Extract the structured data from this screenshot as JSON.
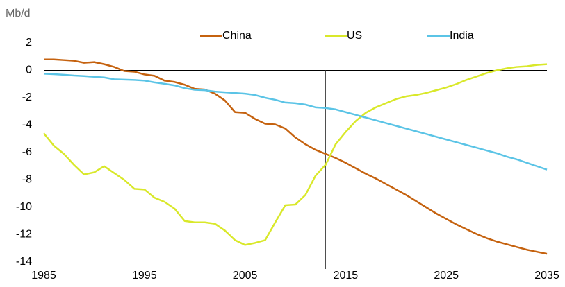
{
  "chart_data": {
    "type": "line",
    "y_label": "Mb/d",
    "x": [
      1985,
      1986,
      1987,
      1988,
      1989,
      1990,
      1991,
      1992,
      1993,
      1994,
      1995,
      1996,
      1997,
      1998,
      1999,
      2000,
      2001,
      2002,
      2003,
      2004,
      2005,
      2006,
      2007,
      2008,
      2009,
      2010,
      2011,
      2012,
      2013,
      2014,
      2015,
      2016,
      2017,
      2018,
      2019,
      2020,
      2021,
      2022,
      2023,
      2024,
      2025,
      2026,
      2027,
      2028,
      2029,
      2030,
      2031,
      2032,
      2033,
      2034,
      2035
    ],
    "series": [
      {
        "name": "China",
        "color": "#c5620f",
        "values": [
          0.8,
          0.8,
          0.75,
          0.7,
          0.55,
          0.6,
          0.45,
          0.25,
          -0.05,
          -0.1,
          -0.3,
          -0.4,
          -0.75,
          -0.85,
          -1.05,
          -1.35,
          -1.4,
          -1.7,
          -2.2,
          -3.05,
          -3.1,
          -3.55,
          -3.9,
          -3.95,
          -4.25,
          -4.9,
          -5.4,
          -5.8,
          -6.1,
          -6.4,
          -6.75,
          -7.15,
          -7.55,
          -7.9,
          -8.3,
          -8.7,
          -9.1,
          -9.55,
          -10.0,
          -10.45,
          -10.85,
          -11.25,
          -11.6,
          -11.95,
          -12.25,
          -12.5,
          -12.7,
          -12.9,
          -13.1,
          -13.25,
          -13.4
        ]
      },
      {
        "name": "US",
        "color": "#d9e82a",
        "values": [
          -4.6,
          -5.5,
          -6.1,
          -6.9,
          -7.6,
          -7.45,
          -7.0,
          -7.5,
          -8.0,
          -8.65,
          -8.7,
          -9.3,
          -9.6,
          -10.1,
          -11.0,
          -11.1,
          -11.1,
          -11.2,
          -11.7,
          -12.4,
          -12.75,
          -12.6,
          -12.4,
          -11.1,
          -9.85,
          -9.8,
          -9.1,
          -7.7,
          -6.9,
          -5.4,
          -4.5,
          -3.7,
          -3.1,
          -2.7,
          -2.4,
          -2.1,
          -1.9,
          -1.8,
          -1.65,
          -1.45,
          -1.25,
          -1.0,
          -0.7,
          -0.45,
          -0.2,
          0.0,
          0.15,
          0.25,
          0.3,
          0.4,
          0.45
        ]
      },
      {
        "name": "India",
        "color": "#5bc4e6",
        "values": [
          -0.25,
          -0.28,
          -0.32,
          -0.38,
          -0.42,
          -0.47,
          -0.52,
          -0.65,
          -0.68,
          -0.7,
          -0.75,
          -0.88,
          -0.98,
          -1.1,
          -1.3,
          -1.42,
          -1.45,
          -1.55,
          -1.6,
          -1.65,
          -1.7,
          -1.8,
          -2.0,
          -2.15,
          -2.35,
          -2.4,
          -2.5,
          -2.7,
          -2.75,
          -2.85,
          -3.05,
          -3.25,
          -3.45,
          -3.65,
          -3.85,
          -4.05,
          -4.25,
          -4.45,
          -4.65,
          -4.85,
          -5.05,
          -5.25,
          -5.45,
          -5.65,
          -5.85,
          -6.05,
          -6.3,
          -6.5,
          -6.75,
          -7.0,
          -7.25
        ]
      }
    ],
    "xlim": [
      1985,
      2035
    ],
    "xticks": [
      1985,
      1995,
      2005,
      2015,
      2025,
      2035
    ],
    "ylim": [
      -14,
      2
    ],
    "yticks": [
      -14,
      -12,
      -10,
      -8,
      -6,
      -4,
      -2,
      0,
      2
    ],
    "vline": 2013
  }
}
